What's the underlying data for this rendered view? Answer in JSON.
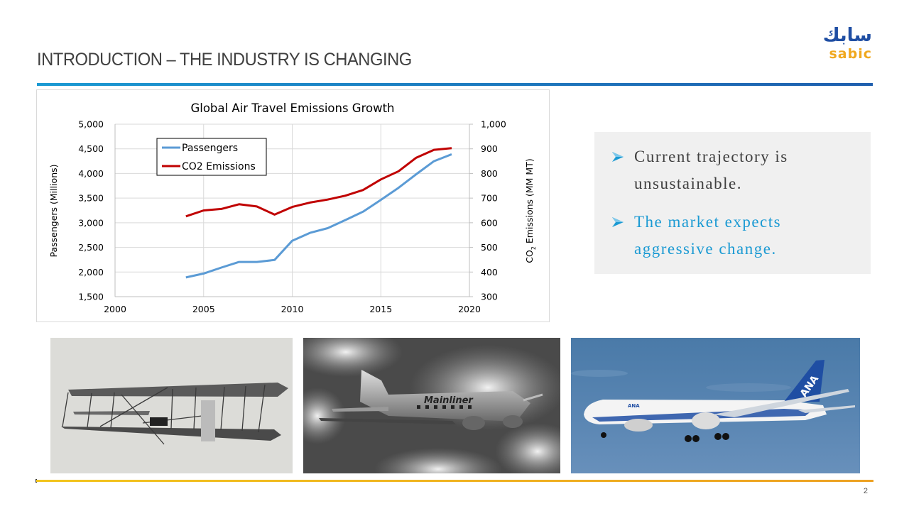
{
  "slide": {
    "title": "INTRODUCTION – THE INDUSTRY IS CHANGING",
    "page_number": "2",
    "logo": {
      "arabic_text": "سابك",
      "latin_text": "sabic",
      "arabic_color": "#1f4ea3",
      "latin_color": "#f0a81e"
    },
    "colors": {
      "title_rule": "#1f6fbf",
      "footer_rule": "#f2b81f",
      "bullet_highlight": "#1b9ad3",
      "callout_bg": "#f0f0f0"
    }
  },
  "callout": {
    "bullets": [
      {
        "text": "Current trajectory is unsustainable."
      },
      {
        "text": "The market expects aggressive change."
      }
    ]
  },
  "photos": [
    {
      "name": "wright-flyer-biplane",
      "caption": ""
    },
    {
      "name": "dc3-mainliner",
      "caption": "Mainliner"
    },
    {
      "name": "ana-787-dreamliner",
      "caption": "ANA"
    }
  ],
  "chart_data": {
    "type": "line",
    "title": "Global Air Travel Emissions Growth",
    "xlabel": "",
    "ylabel": "Passengers (Millions)",
    "y2label": "CO2 Emissions (MM MT)",
    "xlim": [
      2000,
      2020
    ],
    "ylim": [
      1500,
      5000
    ],
    "y2lim": [
      300,
      1000
    ],
    "x_ticks": [
      "2000",
      "2005",
      "2010",
      "2015",
      "2020"
    ],
    "y_ticks": [
      "1,500",
      "2,000",
      "2,500",
      "3,000",
      "3,500",
      "4,000",
      "4,500",
      "5,000"
    ],
    "y2_ticks": [
      "300",
      "400",
      "500",
      "600",
      "700",
      "800",
      "900",
      "1,000"
    ],
    "grid": true,
    "legend_position": "top-left",
    "x": [
      2004,
      2005,
      2006,
      2007,
      2008,
      2009,
      2010,
      2011,
      2012,
      2013,
      2014,
      2015,
      2016,
      2017,
      2018,
      2019
    ],
    "series": [
      {
        "name": "Passengers",
        "axis": "left",
        "color": "#5b9bd5",
        "values": [
          1890,
          1970,
          2090,
          2205,
          2205,
          2245,
          2635,
          2795,
          2890,
          3055,
          3225,
          3465,
          3710,
          3985,
          4250,
          4390
        ]
      },
      {
        "name": "CO2 Emissions",
        "axis": "right",
        "color": "#c00000",
        "values": [
          626,
          650,
          656,
          675,
          666,
          633,
          664,
          682,
          694,
          710,
          733,
          776,
          809,
          864,
          896,
          903
        ]
      }
    ]
  }
}
